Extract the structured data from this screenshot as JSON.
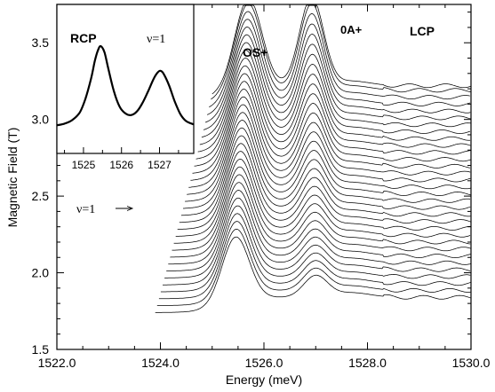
{
  "chart_data": [
    {
      "type": "line",
      "subtype": "waterfall",
      "title": "",
      "xlabel": "Energy (meV)",
      "ylabel": "Magnetic Field (T)",
      "xlim": [
        1522.0,
        1530.0
      ],
      "ylim": [
        1.5,
        3.75
      ],
      "x_tick_labels": [
        "1522.0",
        "1524.0",
        "1526.0",
        "1528.0",
        "1530.0"
      ],
      "y_tick_labels": [
        "1.5",
        "2.0",
        "2.5",
        "3.0",
        "3.5"
      ],
      "grid": false,
      "annotations": [
        "OS+",
        "0A+",
        "LCP",
        "ν=1"
      ],
      "nu_marker_field": 2.46,
      "series_count": 32,
      "field_range": [
        1.74,
        3.12
      ],
      "energy_start_range": [
        1523.9,
        1525.0
      ],
      "energy_end": 1530.0,
      "peaks": [
        {
          "label": "OS+",
          "energy": 1525.45,
          "height_low_field": 0.42,
          "height_high_field": 0.58
        },
        {
          "label": "0A+",
          "energy": 1527.0,
          "height_low_field": 0.14,
          "height_high_field": 0.58
        }
      ],
      "series": [
        {
          "field": 1.74
        },
        {
          "field": 1.785
        },
        {
          "field": 1.83
        },
        {
          "field": 1.875
        },
        {
          "field": 1.92
        },
        {
          "field": 1.965
        },
        {
          "field": 2.01
        },
        {
          "field": 2.055
        },
        {
          "field": 2.1
        },
        {
          "field": 2.145
        },
        {
          "field": 2.19
        },
        {
          "field": 2.235
        },
        {
          "field": 2.28
        },
        {
          "field": 2.325
        },
        {
          "field": 2.37
        },
        {
          "field": 2.415
        },
        {
          "field": 2.46
        },
        {
          "field": 2.505
        },
        {
          "field": 2.55
        },
        {
          "field": 2.595
        },
        {
          "field": 2.64
        },
        {
          "field": 2.685
        },
        {
          "field": 2.73
        },
        {
          "field": 2.775
        },
        {
          "field": 2.82
        },
        {
          "field": 2.865
        },
        {
          "field": 2.91
        },
        {
          "field": 2.955
        },
        {
          "field": 3.0
        },
        {
          "field": 3.045
        },
        {
          "field": 3.09
        },
        {
          "field": 3.12
        }
      ]
    },
    {
      "type": "line",
      "role": "inset",
      "title": "",
      "labels": [
        "RCP",
        "ν=1"
      ],
      "xlim": [
        1524.3,
        1527.9
      ],
      "ylim": [
        0,
        1
      ],
      "x_tick_labels": [
        "1525",
        "1526",
        "1527"
      ],
      "x": [
        1524.3,
        1524.5,
        1524.7,
        1524.9,
        1525.05,
        1525.2,
        1525.3,
        1525.38,
        1525.45,
        1525.55,
        1525.65,
        1525.8,
        1525.95,
        1526.1,
        1526.25,
        1526.4,
        1526.55,
        1526.7,
        1526.85,
        1526.95,
        1527.02,
        1527.1,
        1527.25,
        1527.4,
        1527.55,
        1527.7,
        1527.9
      ],
      "y": [
        0.07,
        0.09,
        0.13,
        0.22,
        0.38,
        0.62,
        0.83,
        0.95,
        1.0,
        0.93,
        0.74,
        0.47,
        0.29,
        0.21,
        0.19,
        0.23,
        0.33,
        0.47,
        0.62,
        0.69,
        0.71,
        0.68,
        0.54,
        0.35,
        0.2,
        0.12,
        0.08
      ]
    }
  ]
}
